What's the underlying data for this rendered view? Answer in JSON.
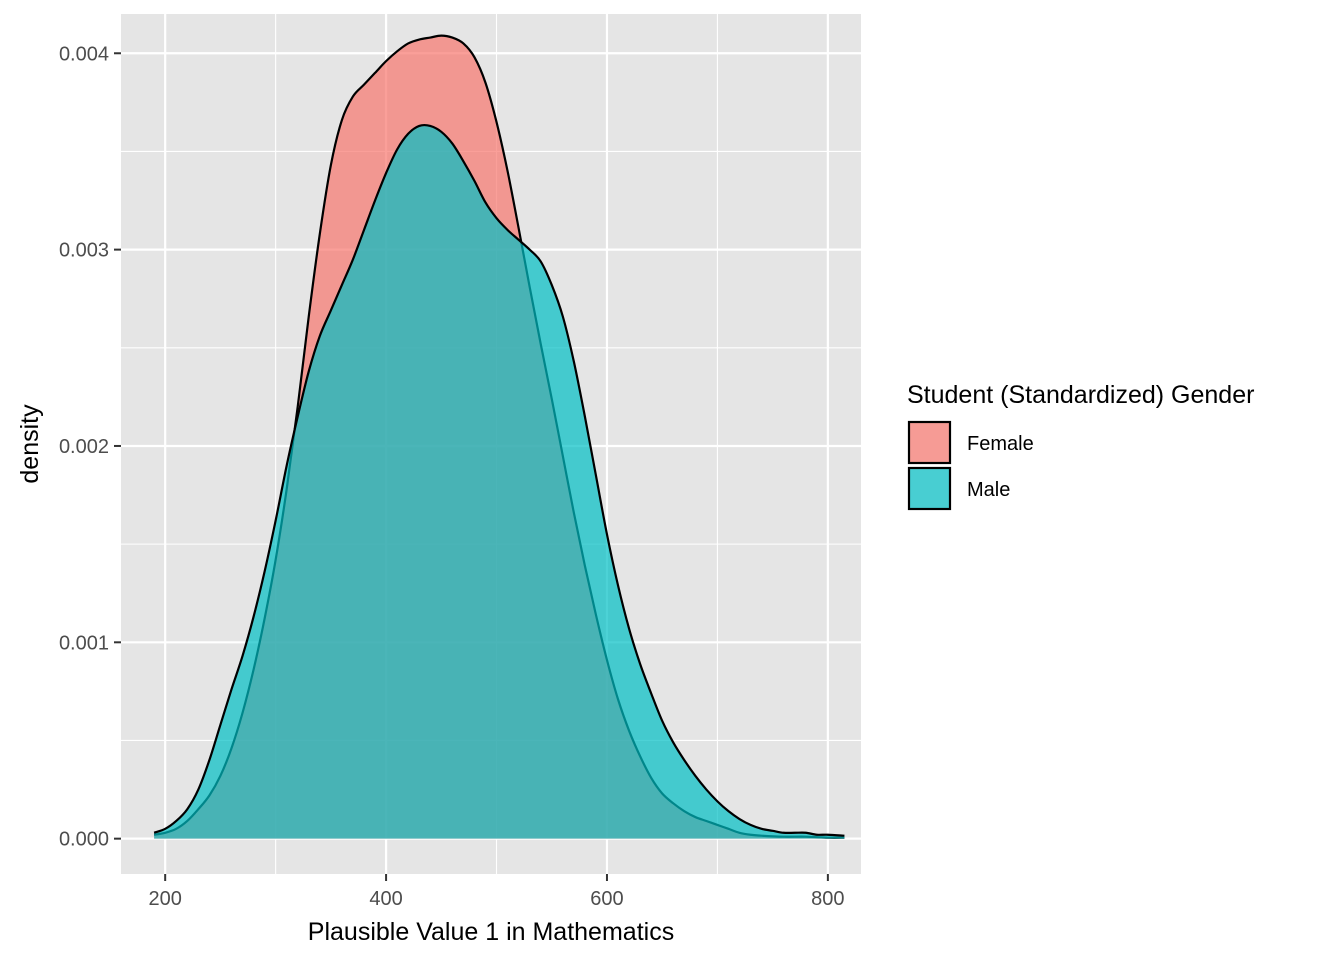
{
  "chart_data": {
    "type": "area",
    "title": "",
    "xlabel": "Plausible Value 1 in Mathematics",
    "ylabel": "density",
    "xlim": [
      160,
      830
    ],
    "ylim": [
      -0.00018,
      0.0042
    ],
    "x_ticks": [
      200,
      400,
      600,
      800
    ],
    "x_tick_labels": [
      "200",
      "400",
      "600",
      "800"
    ],
    "y_ticks": [
      0,
      0.001,
      0.002,
      0.003,
      0.004
    ],
    "y_tick_labels": [
      "0.000",
      "0.001",
      "0.002",
      "0.003",
      "0.004"
    ],
    "grid": true,
    "legend": {
      "title": "Student (Standardized) Gender",
      "position": "right"
    },
    "colors": {
      "panel_background": "#e5e5e5",
      "grid": "#ffffff",
      "outline": "#000000"
    },
    "series": [
      {
        "name": "Female",
        "color": "#f8766d",
        "points": [
          [
            190,
            2e-05
          ],
          [
            200,
            3e-05
          ],
          [
            210,
            5e-05
          ],
          [
            220,
            9e-05
          ],
          [
            230,
            0.00015
          ],
          [
            240,
            0.00022
          ],
          [
            250,
            0.00032
          ],
          [
            260,
            0.00046
          ],
          [
            270,
            0.00064
          ],
          [
            280,
            0.00086
          ],
          [
            290,
            0.00112
          ],
          [
            300,
            0.00142
          ],
          [
            310,
            0.00178
          ],
          [
            320,
            0.0022
          ],
          [
            330,
            0.00266
          ],
          [
            340,
            0.00308
          ],
          [
            350,
            0.00343
          ],
          [
            360,
            0.00366
          ],
          [
            370,
            0.00378
          ],
          [
            380,
            0.00384
          ],
          [
            390,
            0.0039
          ],
          [
            400,
            0.00396
          ],
          [
            410,
            0.00401
          ],
          [
            420,
            0.00405
          ],
          [
            430,
            0.00407
          ],
          [
            440,
            0.00408
          ],
          [
            450,
            0.00409
          ],
          [
            460,
            0.00408
          ],
          [
            470,
            0.00405
          ],
          [
            480,
            0.00398
          ],
          [
            490,
            0.00385
          ],
          [
            500,
            0.00365
          ],
          [
            510,
            0.0034
          ],
          [
            520,
            0.00311
          ],
          [
            530,
            0.00281
          ],
          [
            540,
            0.00252
          ],
          [
            550,
            0.00224
          ],
          [
            560,
            0.00195
          ],
          [
            570,
            0.00166
          ],
          [
            580,
            0.00139
          ],
          [
            590,
            0.00114
          ],
          [
            600,
            0.00091
          ],
          [
            610,
            0.00071
          ],
          [
            620,
            0.00055
          ],
          [
            630,
            0.00042
          ],
          [
            640,
            0.00031
          ],
          [
            650,
            0.00023
          ],
          [
            660,
            0.00018
          ],
          [
            670,
            0.00014
          ],
          [
            680,
            0.00011
          ],
          [
            690,
            9e-05
          ],
          [
            700,
            7e-05
          ],
          [
            710,
            5e-05
          ],
          [
            720,
            3e-05
          ],
          [
            730,
            2e-05
          ],
          [
            740,
            1.5e-05
          ],
          [
            760,
            1e-05
          ],
          [
            780,
            1e-05
          ],
          [
            800,
            5e-06
          ],
          [
            815,
            5e-06
          ]
        ]
      },
      {
        "name": "Male",
        "color": "#00bfc4",
        "points": [
          [
            190,
            3e-05
          ],
          [
            200,
            5e-05
          ],
          [
            210,
            9e-05
          ],
          [
            220,
            0.00015
          ],
          [
            230,
            0.00025
          ],
          [
            240,
            0.0004
          ],
          [
            250,
            0.00058
          ],
          [
            260,
            0.00076
          ],
          [
            270,
            0.00093
          ],
          [
            280,
            0.00113
          ],
          [
            290,
            0.00136
          ],
          [
            300,
            0.00162
          ],
          [
            310,
            0.0019
          ],
          [
            320,
            0.00215
          ],
          [
            330,
            0.00238
          ],
          [
            340,
            0.00256
          ],
          [
            350,
            0.00269
          ],
          [
            360,
            0.00282
          ],
          [
            370,
            0.00295
          ],
          [
            380,
            0.0031
          ],
          [
            390,
            0.00325
          ],
          [
            400,
            0.00339
          ],
          [
            410,
            0.00351
          ],
          [
            420,
            0.00359
          ],
          [
            430,
            0.00363
          ],
          [
            440,
            0.00363
          ],
          [
            450,
            0.0036
          ],
          [
            460,
            0.00354
          ],
          [
            470,
            0.00345
          ],
          [
            480,
            0.00335
          ],
          [
            490,
            0.00324
          ],
          [
            500,
            0.00316
          ],
          [
            510,
            0.0031
          ],
          [
            520,
            0.00305
          ],
          [
            530,
            0.003
          ],
          [
            540,
            0.00294
          ],
          [
            550,
            0.00282
          ],
          [
            560,
            0.00266
          ],
          [
            570,
            0.00243
          ],
          [
            580,
            0.00215
          ],
          [
            590,
            0.00185
          ],
          [
            600,
            0.00155
          ],
          [
            610,
            0.00129
          ],
          [
            620,
            0.00107
          ],
          [
            630,
            0.00089
          ],
          [
            640,
            0.00074
          ],
          [
            650,
            0.0006
          ],
          [
            660,
            0.00049
          ],
          [
            670,
            0.0004
          ],
          [
            680,
            0.00032
          ],
          [
            690,
            0.00025
          ],
          [
            700,
            0.00019
          ],
          [
            710,
            0.00014
          ],
          [
            720,
            0.0001
          ],
          [
            730,
            7e-05
          ],
          [
            740,
            5e-05
          ],
          [
            750,
            4e-05
          ],
          [
            760,
            3e-05
          ],
          [
            770,
            3e-05
          ],
          [
            780,
            3e-05
          ],
          [
            790,
            2e-05
          ],
          [
            800,
            2e-05
          ],
          [
            815,
            1.5e-05
          ]
        ]
      }
    ]
  }
}
